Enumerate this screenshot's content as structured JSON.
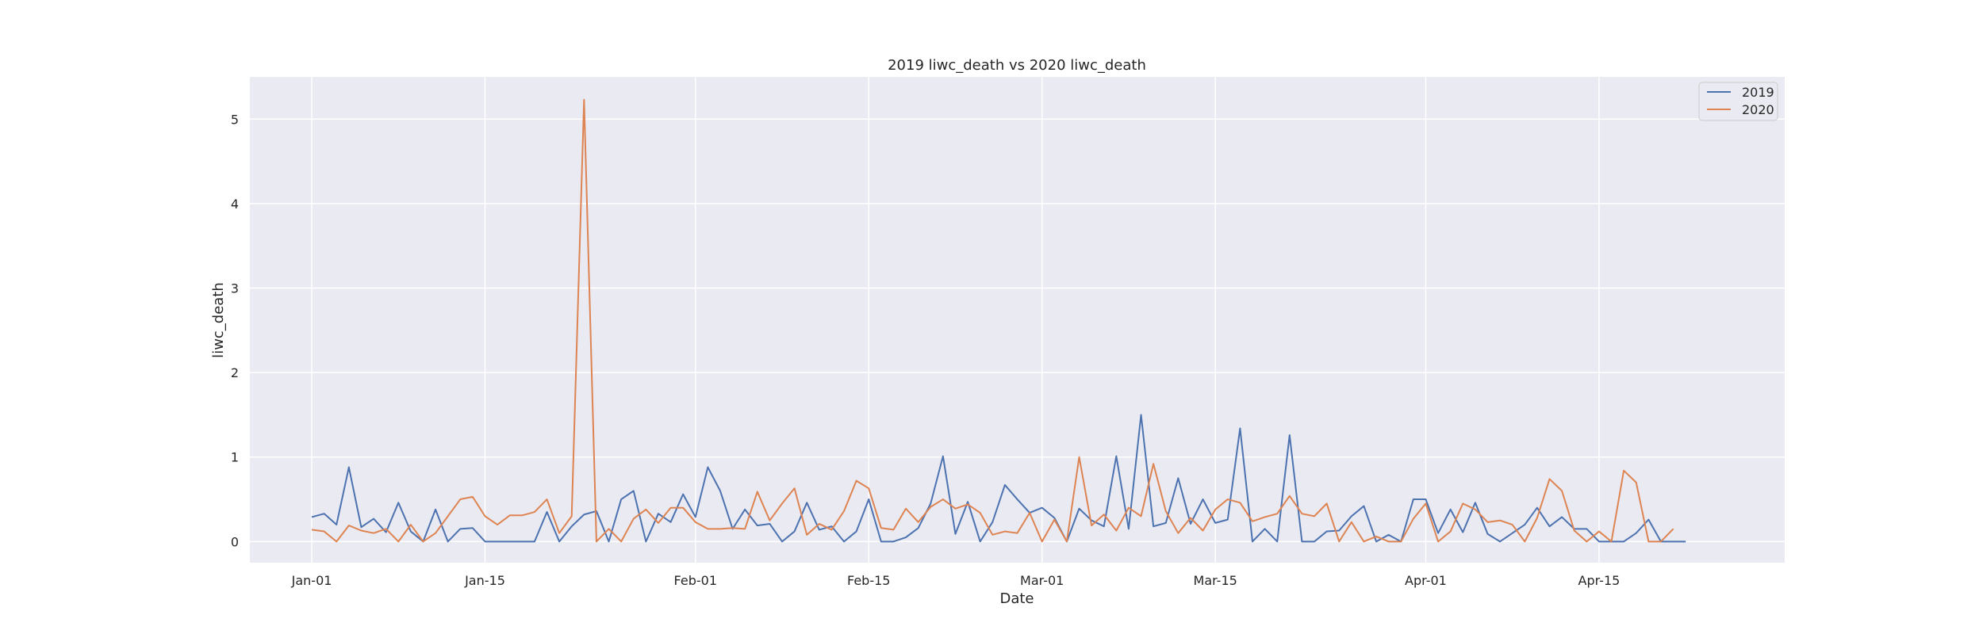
{
  "chart_data": {
    "type": "line",
    "title": "2019 liwc_death vs 2020 liwc_death",
    "xlabel": "Date",
    "ylabel": "liwc_death",
    "x_ticks": [
      "Jan-01",
      "Jan-15",
      "Feb-01",
      "Feb-15",
      "Mar-01",
      "Mar-15",
      "Apr-01",
      "Apr-15"
    ],
    "y_ticks": [
      "0",
      "1",
      "2",
      "3",
      "4",
      "5"
    ],
    "x_start_date": "Jan-01",
    "x_end_date": "Apr-20",
    "x_range": [
      "Dec-27",
      "Apr-30"
    ],
    "ylim": [
      -0.25,
      5.5
    ],
    "grid": true,
    "legend_position": "top-right",
    "colors": {
      "background": "#EAEAF2",
      "grid": "#FFFFFF",
      "text": "#262626"
    },
    "series": [
      {
        "name": "2019",
        "color": "#4C72B0",
        "values": [
          0.29,
          0.33,
          0.2,
          0.88,
          0.17,
          0.27,
          0.11,
          0.46,
          0.12,
          0.0,
          0.38,
          0.0,
          0.15,
          0.16,
          0.0,
          0.0,
          0.0,
          0.0,
          0.0,
          0.35,
          0.0,
          0.18,
          0.32,
          0.36,
          0.0,
          0.5,
          0.6,
          0.0,
          0.33,
          0.23,
          0.56,
          0.29,
          0.88,
          0.6,
          0.15,
          0.38,
          0.19,
          0.21,
          0.0,
          0.12,
          0.46,
          0.14,
          0.18,
          0.0,
          0.12,
          0.5,
          0.0,
          0.0,
          0.05,
          0.16,
          0.45,
          1.01,
          0.09,
          0.47,
          0.0,
          0.23,
          0.67,
          0.5,
          0.34,
          0.4,
          0.28,
          0.0,
          0.39,
          0.25,
          0.18,
          1.01,
          0.15,
          1.5,
          0.18,
          0.22,
          0.75,
          0.21,
          0.5,
          0.22,
          0.26,
          1.34,
          0.0,
          0.15,
          0.0,
          1.26,
          0.0,
          0.0,
          0.12,
          0.13,
          0.3,
          0.42,
          0.0,
          0.08,
          0.0,
          0.5,
          0.5,
          0.1,
          0.38,
          0.11,
          0.46,
          0.09,
          0.0,
          0.1,
          0.2,
          0.4,
          0.18,
          0.29,
          0.15,
          0.15,
          0.0,
          0.0,
          0.0,
          0.1,
          0.26,
          0.0,
          0.0,
          0.0
        ]
      },
      {
        "name": "2020",
        "color": "#DD8452",
        "values": [
          0.14,
          0.12,
          0.0,
          0.19,
          0.13,
          0.1,
          0.15,
          0.0,
          0.2,
          0.0,
          0.1,
          0.3,
          0.5,
          0.53,
          0.3,
          0.2,
          0.31,
          0.31,
          0.35,
          0.5,
          0.1,
          0.3,
          5.23,
          0.0,
          0.15,
          0.0,
          0.27,
          0.38,
          0.22,
          0.4,
          0.4,
          0.23,
          0.15,
          0.15,
          0.16,
          0.15,
          0.59,
          0.25,
          0.45,
          0.63,
          0.08,
          0.21,
          0.14,
          0.36,
          0.72,
          0.63,
          0.16,
          0.14,
          0.39,
          0.23,
          0.41,
          0.5,
          0.39,
          0.44,
          0.34,
          0.08,
          0.12,
          0.1,
          0.34,
          0.0,
          0.26,
          0.0,
          1.0,
          0.19,
          0.32,
          0.13,
          0.4,
          0.3,
          0.92,
          0.36,
          0.1,
          0.28,
          0.13,
          0.38,
          0.5,
          0.46,
          0.24,
          0.29,
          0.33,
          0.54,
          0.33,
          0.3,
          0.45,
          0.0,
          0.23,
          0.0,
          0.06,
          0.0,
          0.0,
          0.27,
          0.45,
          0.0,
          0.12,
          0.45,
          0.38,
          0.23,
          0.25,
          0.2,
          0.0,
          0.28,
          0.74,
          0.6,
          0.13,
          0.0,
          0.12,
          0.0,
          0.84,
          0.7,
          0.0,
          0.0,
          0.15
        ]
      }
    ]
  }
}
